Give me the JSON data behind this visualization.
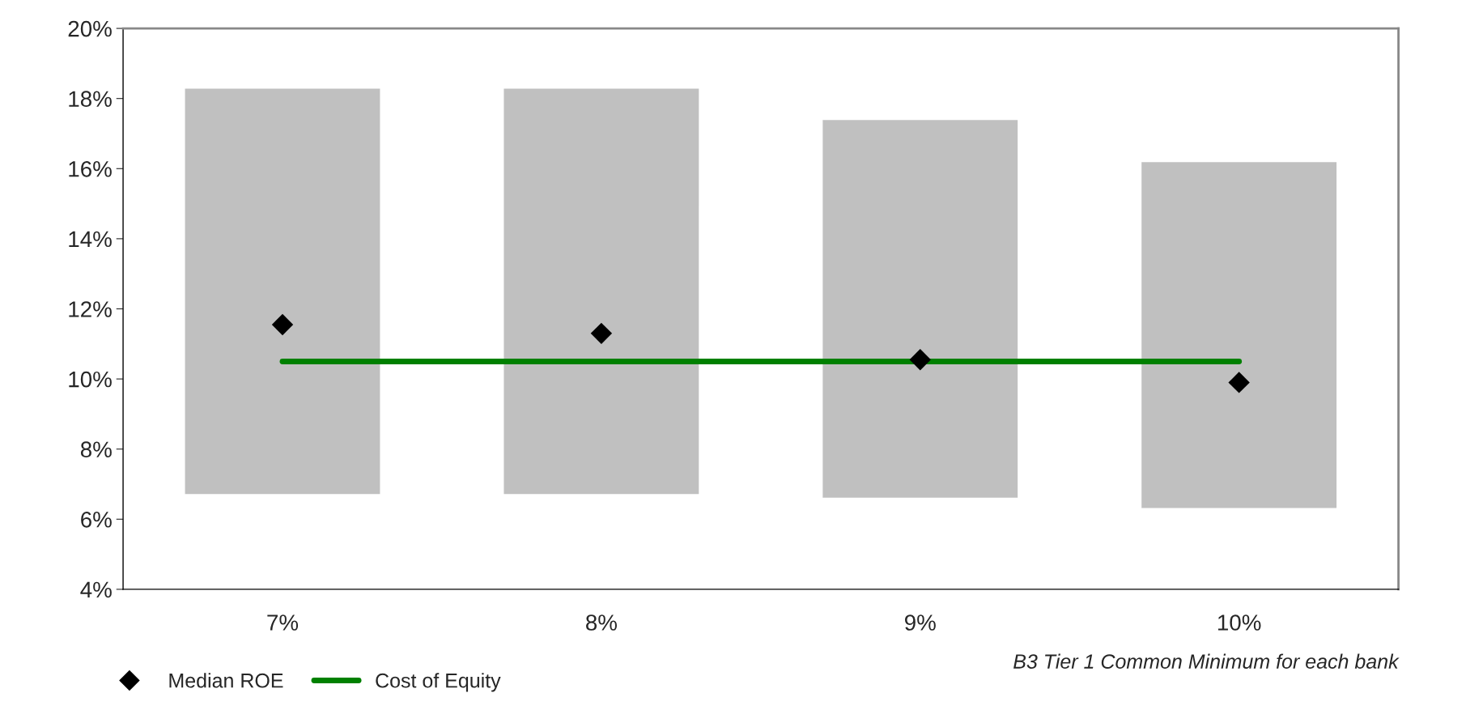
{
  "chart_data": {
    "type": "bar",
    "xlabel": "B3 Tier 1 Common Minimum for each bank",
    "categories": [
      "7%",
      "8%",
      "9%",
      "10%"
    ],
    "series": [
      {
        "color": "#c0c0c0",
        "base": [
          6.7,
          6.7,
          6.6,
          6.3
        ],
        "values": [
          11.6,
          11.6,
          10.8,
          9.9
        ]
      },
      {
        "type": "scatter",
        "name": "Median ROE",
        "color": "#000000",
        "marker": "diamond",
        "values": [
          11.55,
          11.3,
          10.55,
          9.9
        ]
      },
      {
        "type": "line",
        "name": "Cost of Equity",
        "color": "#008000",
        "line_style": "solid",
        "values": [
          10.5,
          10.5,
          10.5,
          10.5
        ]
      }
    ],
    "ylim": [
      4,
      20
    ],
    "yticks": [
      {
        "value": 4,
        "label": "4%"
      },
      {
        "value": 6,
        "label": "6%"
      },
      {
        "value": 8,
        "label": "8%"
      },
      {
        "value": 10,
        "label": "10%"
      },
      {
        "value": 12,
        "label": "12%"
      },
      {
        "value": 14,
        "label": "14%"
      },
      {
        "value": 16,
        "label": "16%"
      },
      {
        "value": 18,
        "label": "18%"
      },
      {
        "value": 20,
        "label": "20%"
      }
    ],
    "grid": false,
    "legend": "bottom left"
  }
}
